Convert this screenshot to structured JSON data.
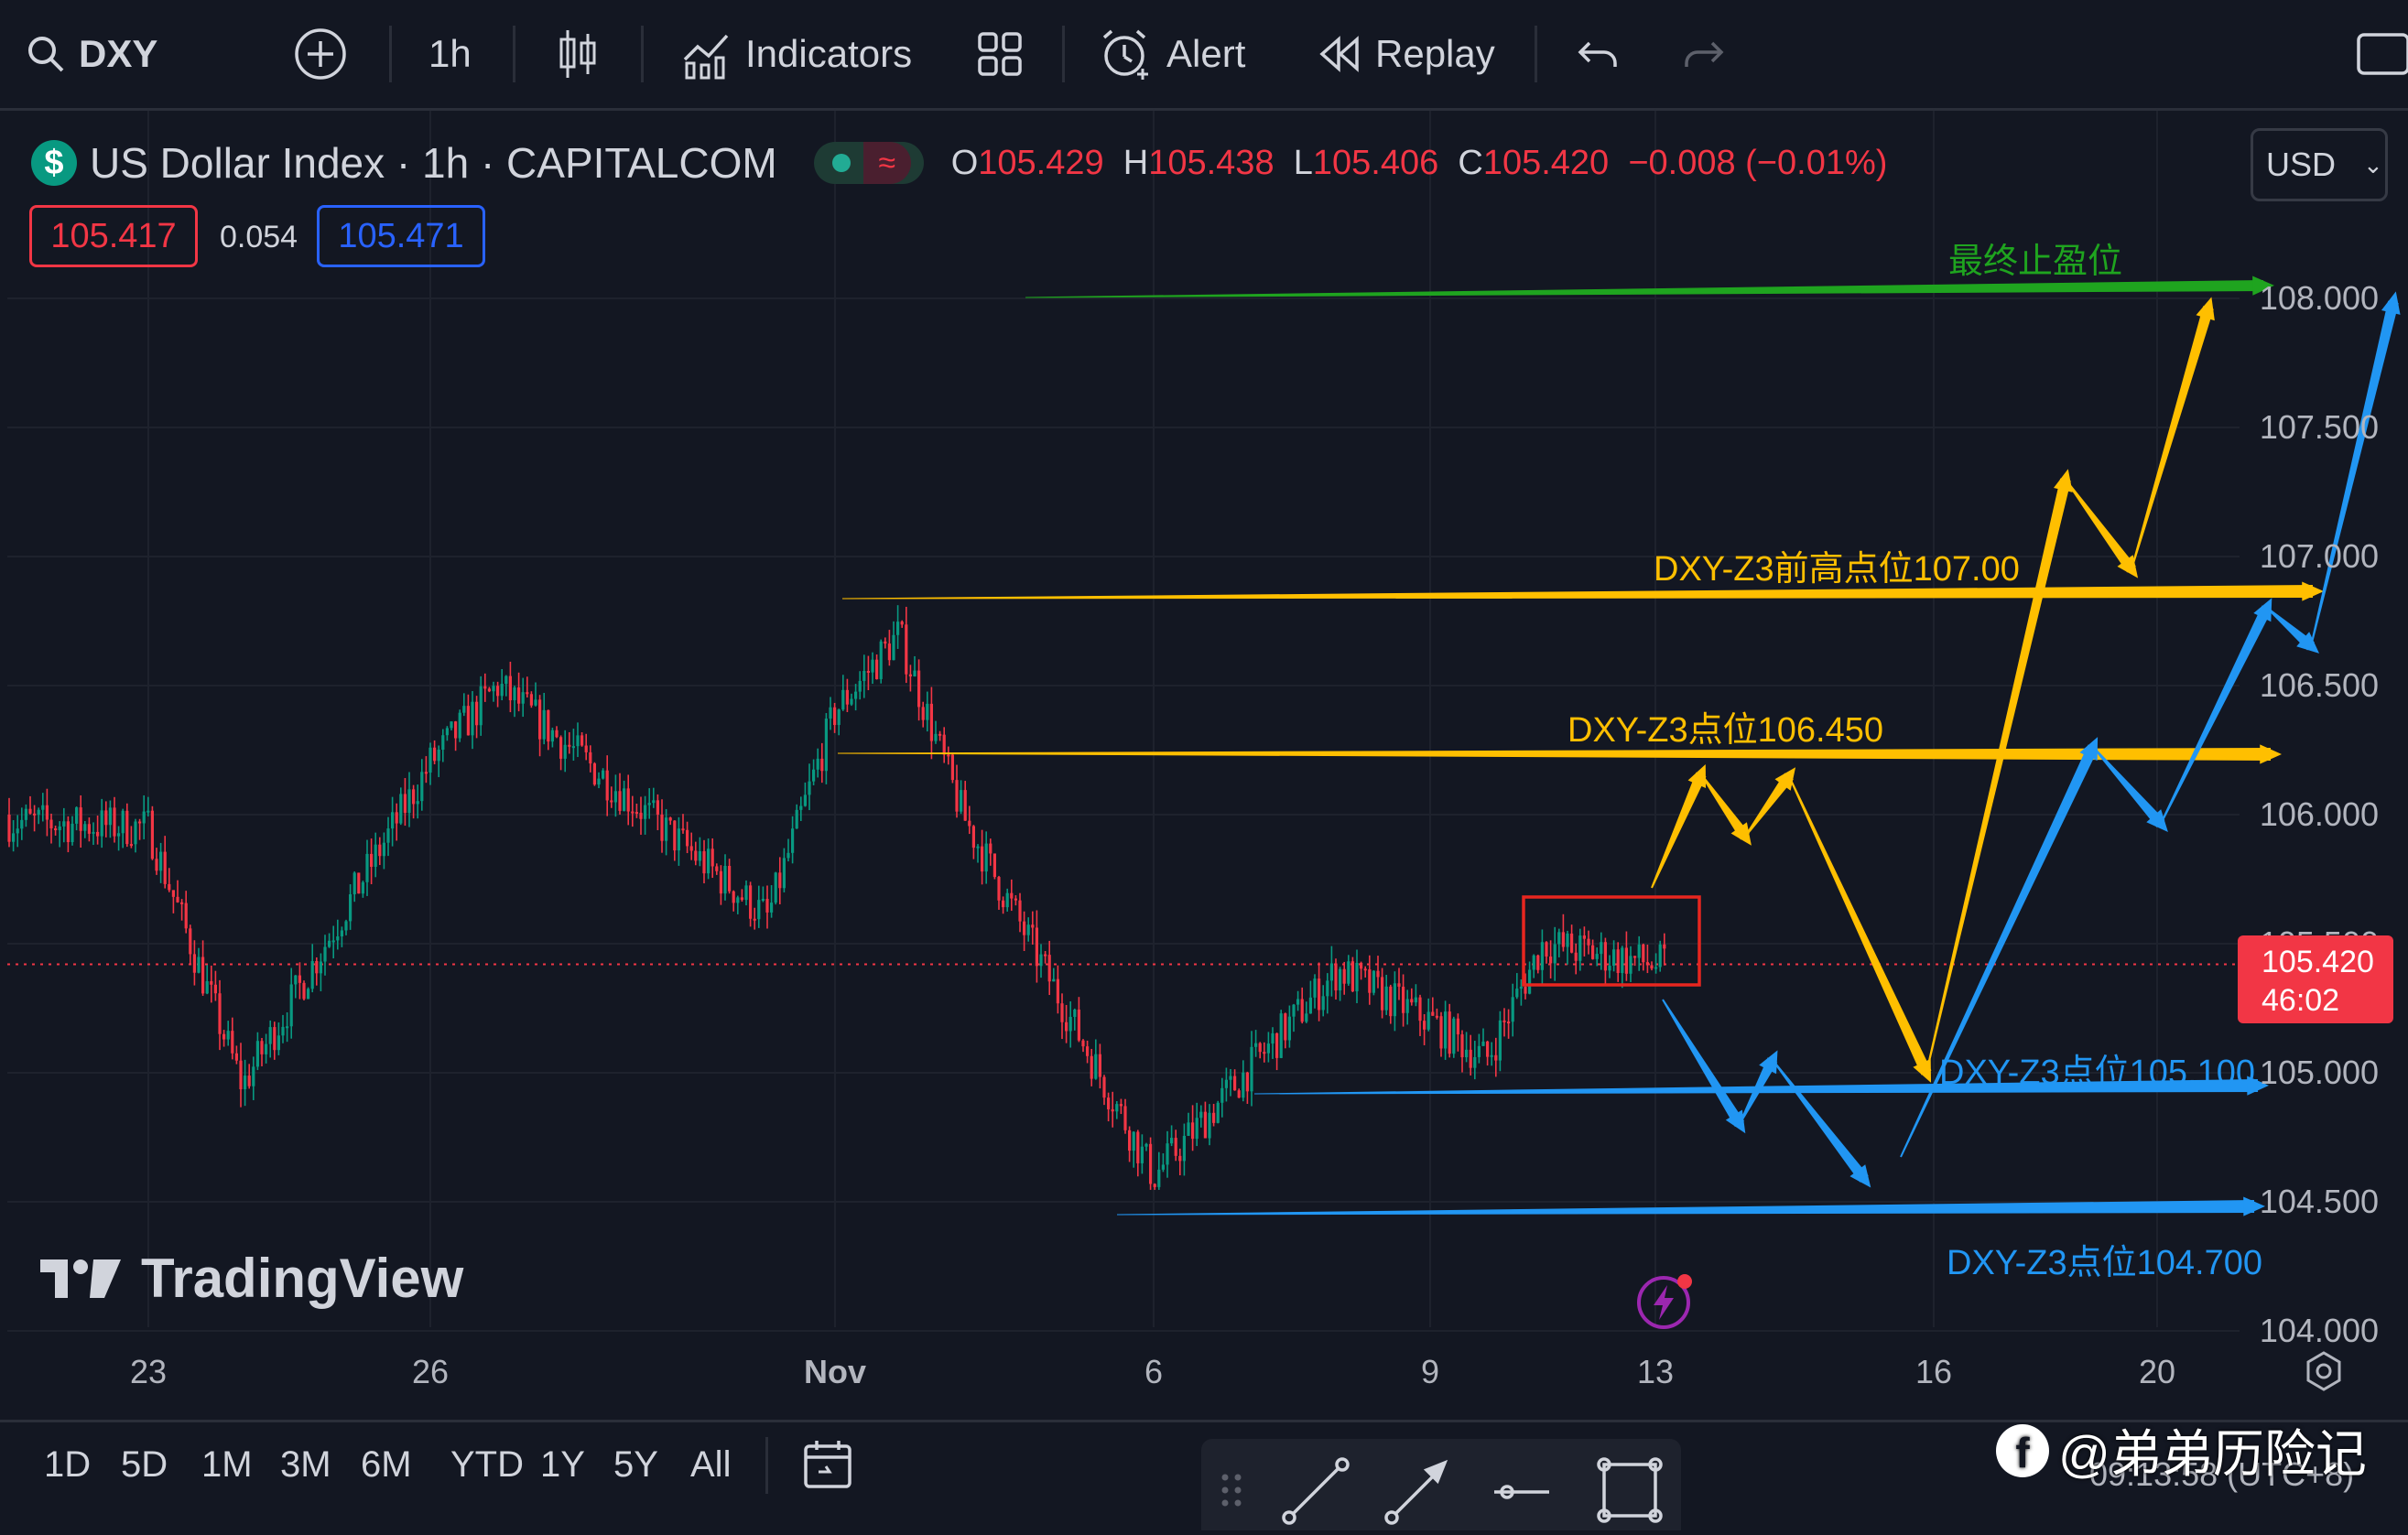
{
  "toolbar": {
    "symbol": "DXY",
    "interval": "1h",
    "indicators": "Indicators",
    "alert": "Alert",
    "replay": "Replay"
  },
  "legend": {
    "title": "US Dollar Index · 1h · CAPITALCOM",
    "o_label": "O",
    "o": "105.429",
    "h_label": "H",
    "h": "105.438",
    "l_label": "L",
    "l": "105.406",
    "c_label": "C",
    "c": "105.420",
    "change": "−0.008 (−0.01%)",
    "bid": "105.417",
    "spread": "0.054",
    "ask": "105.471"
  },
  "currency": "USD",
  "price_axis": {
    "ticks": [
      "108.000",
      "107.500",
      "107.000",
      "106.500",
      "106.000",
      "105.500",
      "105.000",
      "104.500",
      "104.000"
    ],
    "last_price": "105.420",
    "countdown": "46:02"
  },
  "time_axis": {
    "ticks": [
      "23",
      "26",
      "Nov",
      "6",
      "9",
      "13",
      "16",
      "20"
    ]
  },
  "annotations": {
    "final_tp": "最终止盈位",
    "level_107": "DXY-Z3前高点位107.00",
    "level_10645": "DXY-Z3点位106.450",
    "level_1051": "DXY-Z3点位105.100",
    "level_1047": "DXY-Z3点位104.700"
  },
  "watermark": "TradingView",
  "ranges": [
    "1D",
    "5D",
    "1M",
    "3M",
    "6M",
    "YTD",
    "1Y",
    "5Y",
    "All"
  ],
  "clock": "09:13:58 (UTC+8)",
  "overlay_credit": "@弟弟历险记",
  "colors": {
    "up": "#089981",
    "down": "#f23645",
    "green_line": "#1fa41f",
    "yellow": "#ffbf00",
    "blue": "#2196f3",
    "box": "#e8261f"
  },
  "chart_data": {
    "type": "candlestick",
    "symbol": "DXY",
    "interval": "1h",
    "y_range": [
      104.0,
      108.25
    ],
    "last_price": 105.42,
    "path_close_approx": [
      {
        "x": "Oct 20",
        "y": 106.0
      },
      {
        "x": "Oct 23",
        "y": 105.95
      },
      {
        "x": "Oct 24",
        "y": 104.95
      },
      {
        "x": "Oct 26",
        "y": 106.2
      },
      {
        "x": "Oct 27",
        "y": 106.5
      },
      {
        "x": "Oct 31",
        "y": 105.6
      },
      {
        "x": "Nov 1",
        "y": 106.4
      },
      {
        "x": "Nov 2",
        "y": 106.7
      },
      {
        "x": "Nov 3",
        "y": 106.0
      },
      {
        "x": "Nov 6",
        "y": 104.6
      },
      {
        "x": "Nov 7",
        "y": 105.0
      },
      {
        "x": "Nov 8",
        "y": 105.4
      },
      {
        "x": "Nov 9",
        "y": 105.2
      },
      {
        "x": "Nov 10",
        "y": 105.05
      },
      {
        "x": "Nov 11",
        "y": 105.5
      },
      {
        "x": "Nov 13",
        "y": 105.42
      }
    ],
    "levels": [
      {
        "label": "最终止盈位",
        "value": 108.0
      },
      {
        "label": "DXY-Z3前高点位107.00",
        "value": 106.9
      },
      {
        "label": "DXY-Z3点位106.450",
        "value": 106.25
      },
      {
        "label": "DXY-Z3点位105.100",
        "value": 104.95
      },
      {
        "label": "DXY-Z3点位104.700",
        "value": 104.5
      }
    ]
  }
}
